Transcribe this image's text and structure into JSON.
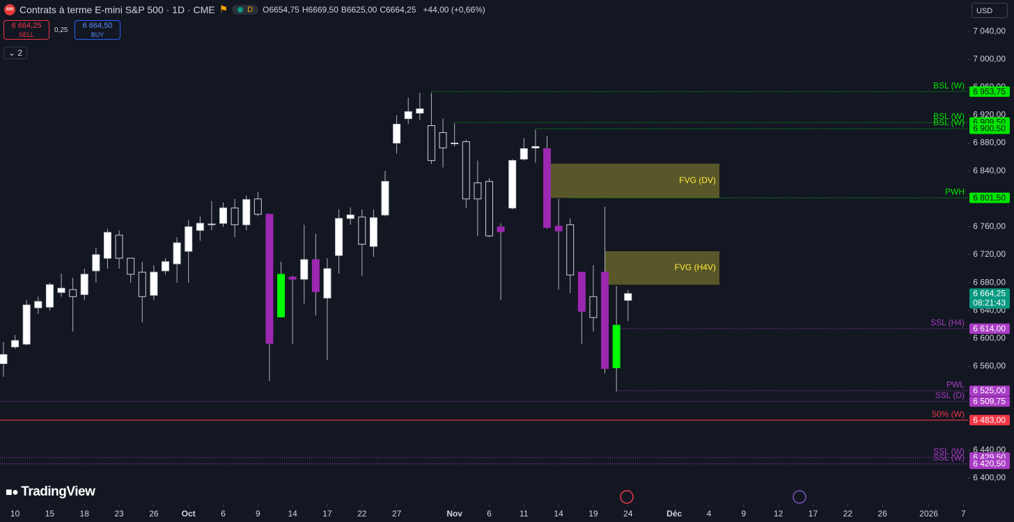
{
  "header": {
    "badge": "500",
    "title": "Contrats à terme E-mini S&P 500 · 1D · CME",
    "status": "D",
    "ohlc_labels": [
      "O",
      "H",
      "B",
      "C"
    ],
    "ohlc_values": [
      "6654,75",
      "6669,50",
      "6625,00",
      "6664,25"
    ],
    "change": "+44,00 (+0,66%)"
  },
  "trade": {
    "sell_price": "6 664,25",
    "sell": "SELL",
    "spread": "0,25",
    "buy_price": "6 664,50",
    "buy": "BUY"
  },
  "indicators_count": "2",
  "currency": "USD",
  "brand": "TradingView",
  "chart_data": {
    "type": "candlestick",
    "open": [
      6564,
      6588,
      6592,
      6644,
      6645,
      6666,
      6670,
      6663,
      6697,
      6715,
      6748,
      6715,
      6695,
      6662,
      6697,
      6707,
      6725,
      6755,
      6763,
      6765,
      6787,
      6763,
      6800,
      6778,
      6631,
      6688,
      6685,
      6713,
      6658,
      6719,
      6772,
      6774,
      6732,
      6777,
      6880,
      6915,
      6923,
      6905,
      6895,
      6879,
      6882,
      6823,
      6825,
      6760,
      6787,
      6857,
      6873,
      6872,
      6761,
      6763,
      6695,
      6660,
      6695,
      6558,
      6654.75
    ],
    "high": [
      6595,
      6605,
      6655,
      6660,
      6680,
      6693,
      6687,
      6700,
      6730,
      6757,
      6755,
      6715,
      6710,
      6705,
      6715,
      6745,
      6770,
      6775,
      6797,
      6795,
      6800,
      6805,
      6810,
      6779,
      6710,
      6690,
      6763,
      6750,
      6715,
      6785,
      6788,
      6785,
      6785,
      6840,
      6920,
      6945,
      6952,
      6952,
      6915,
      6908,
      6885,
      6855,
      6830,
      6765,
      6857,
      6887,
      6899,
      6890,
      6800,
      6772,
      6695,
      6705,
      6789,
      6675,
      6669.5
    ],
    "low": [
      6545,
      6585,
      6590,
      6635,
      6640,
      6660,
      6610,
      6655,
      6680,
      6700,
      6700,
      6680,
      6623,
      6655,
      6692,
      6680,
      6680,
      6740,
      6755,
      6760,
      6745,
      6755,
      6775,
      6539,
      6630,
      6592,
      6650,
      6633,
      6569,
      6693,
      6763,
      6690,
      6717,
      6775,
      6865,
      6907,
      6913,
      6850,
      6845,
      6875,
      6787,
      6747,
      6745,
      6655,
      6785,
      6855,
      6852,
      6757,
      6670,
      6665,
      6592,
      6610,
      6550,
      6524,
      6625
    ],
    "close": [
      6577,
      6597,
      6648,
      6653,
      6677,
      6672,
      6660,
      6692,
      6720,
      6752,
      6715,
      6692,
      6660,
      6695,
      6710,
      6737,
      6760,
      6765,
      6764,
      6787,
      6763,
      6799,
      6778,
      6593,
      6692,
      6685,
      6713,
      6667,
      6700,
      6772,
      6777,
      6735,
      6773,
      6825,
      6907,
      6925,
      6929,
      6855,
      6873,
      6880,
      6800,
      6800,
      6747,
      6753,
      6855,
      6872,
      6875,
      6759,
      6754,
      6691,
      6639,
      6630,
      6557,
      6619,
      6664.25
    ],
    "colors": [
      "#ffffff",
      "#ffffff",
      "#ffffff",
      "#ffffff",
      "#ffffff",
      "#ffffff",
      "#131722",
      "#ffffff",
      "#ffffff",
      "#ffffff",
      "#131722",
      "#131722",
      "#131722",
      "#ffffff",
      "#ffffff",
      "#ffffff",
      "#ffffff",
      "#ffffff",
      "#ffffff",
      "#ffffff",
      "#131722",
      "#ffffff",
      "#131722",
      "#9c27b0",
      "#00ff00",
      "#9c27b0",
      "#ffffff",
      "#9c27b0",
      "#ffffff",
      "#ffffff",
      "#ffffff",
      "#131722",
      "#ffffff",
      "#ffffff",
      "#ffffff",
      "#ffffff",
      "#ffffff",
      "#131722",
      "#131722",
      "#ffffff",
      "#131722",
      "#131722",
      "#131722",
      "#9c27b0",
      "#ffffff",
      "#ffffff",
      "#ffffff",
      "#9c27b0",
      "#9c27b0",
      "#131722",
      "#9c27b0",
      "#131722",
      "#9c27b0",
      "#00ff00",
      "#ffffff"
    ],
    "bordered": [
      "#ffffff",
      "#131722"
    ],
    "border_color": "#d1d4dc",
    "wick_color": "#b2b5be",
    "xlim": [
      -0.3,
      83.4
    ],
    "ylim": [
      6362,
      7085
    ],
    "xticks": [
      {
        "value": 1,
        "label": "10"
      },
      {
        "value": 4,
        "label": "15"
      },
      {
        "value": 7,
        "label": "18"
      },
      {
        "value": 10,
        "label": "23"
      },
      {
        "value": 13,
        "label": "26"
      },
      {
        "value": 16,
        "label": "Oct"
      },
      {
        "value": 19,
        "label": "6"
      },
      {
        "value": 22,
        "label": "9"
      },
      {
        "value": 25,
        "label": "14"
      },
      {
        "value": 28,
        "label": "17"
      },
      {
        "value": 31,
        "label": "22"
      },
      {
        "value": 34,
        "label": "27"
      },
      {
        "value": 39,
        "label": "Nov"
      },
      {
        "value": 42,
        "label": "6"
      },
      {
        "value": 45,
        "label": "11"
      },
      {
        "value": 48,
        "label": "14"
      },
      {
        "value": 51,
        "label": "19"
      },
      {
        "value": 54,
        "label": "24"
      },
      {
        "value": 58,
        "label": "Déc"
      },
      {
        "value": 61,
        "label": "4"
      },
      {
        "value": 64,
        "label": "9"
      },
      {
        "value": 67,
        "label": "12"
      },
      {
        "value": 70,
        "label": "17"
      },
      {
        "value": 73,
        "label": "22"
      },
      {
        "value": 76,
        "label": "26"
      },
      {
        "value": 80,
        "label": "2026"
      },
      {
        "value": 83,
        "label": "7"
      }
    ],
    "yticks": [
      {
        "value": 7040,
        "label": "7 040,00"
      },
      {
        "value": 7000,
        "label": "7 000,00"
      },
      {
        "value": 6960,
        "label": "6 960,00"
      },
      {
        "value": 6920,
        "label": "6 920,00"
      },
      {
        "value": 6880,
        "label": "6 880,00"
      },
      {
        "value": 6840,
        "label": "6 840,00"
      },
      {
        "value": 6760,
        "label": "6 760,00"
      },
      {
        "value": 6720,
        "label": "6 720,00"
      },
      {
        "value": 6680,
        "label": "6 680,00"
      },
      {
        "value": 6640,
        "label": "6 640,00"
      },
      {
        "value": 6600,
        "label": "6 600,00"
      },
      {
        "value": 6560,
        "label": "6 560,00"
      },
      {
        "value": 6440,
        "label": "6 440,00"
      },
      {
        "value": 6400,
        "label": "6 400,00"
      }
    ],
    "zones": [
      {
        "name": "FVG (DV)",
        "top": 6850.5,
        "bottom": 6801.5,
        "from": 47.3,
        "to": 61.9,
        "color": "#66632a",
        "label_color": "#ffeb3b"
      },
      {
        "name": "FVG (H4V)",
        "top": 6725,
        "bottom": 6677,
        "from": 52,
        "to": 61.9,
        "color": "#66632a",
        "label_color": "#ffeb3b"
      }
    ],
    "levels": [
      {
        "name": "BSL (W)",
        "value": 6953.75,
        "label": "6 953,75",
        "from": 37,
        "color": "#00e600",
        "text_color": "#131722",
        "dash": "1 2"
      },
      {
        "name": "BSL (W)",
        "value": 6909.5,
        "label": "6 909,50",
        "from": 39,
        "color": "#00e600",
        "text_color": "#131722",
        "dash": "1 2"
      },
      {
        "name": "BSL (W)",
        "value": 6900.5,
        "label": "6 900,50",
        "from": 46,
        "color": "#00e600",
        "text_color": "#131722",
        "dash": "1 2"
      },
      {
        "name": "PWH",
        "value": 6801.5,
        "label": "6 801,50",
        "from": 49,
        "color": "#00e600",
        "text_color": "#131722",
        "dash": "1 2"
      },
      {
        "name": "SSL (H4)",
        "value": 6614,
        "label": "6 614,00",
        "from": 53,
        "color": "#a93cc4",
        "text_color": "#ffffff",
        "dash": "1 2"
      },
      {
        "name": "PWL",
        "value": 6525,
        "label": "6 525,00",
        "from": 53,
        "color": "#a93cc4",
        "text_color": "#ffffff",
        "dash": "1 2"
      },
      {
        "name": "SSL (D)",
        "value": 6509.75,
        "label": "6 509,75",
        "from": -0.3,
        "color": "#a93cc4",
        "text_color": "#ffffff",
        "dash": "1 2"
      },
      {
        "name": "50% (W)",
        "value": 6483,
        "label": "6 483,00",
        "from": -0.3,
        "color": "#f23645",
        "text_color": "#ffffff",
        "dash": "none"
      },
      {
        "name": "SSL (W)",
        "value": 6429.5,
        "label": "6 429,50",
        "from": -0.3,
        "color": "#a93cc4",
        "text_color": "#ffffff",
        "dash": "1 2"
      },
      {
        "name": "SSL (W)",
        "value": 6420.5,
        "label": "6 420,50",
        "from": -0.3,
        "color": "#a93cc4",
        "text_color": "#ffffff",
        "dash": "1 2"
      }
    ],
    "last_price": {
      "value": 6664.25,
      "label": "6 664,25",
      "countdown": "08:21:43",
      "color": "#089981"
    }
  }
}
